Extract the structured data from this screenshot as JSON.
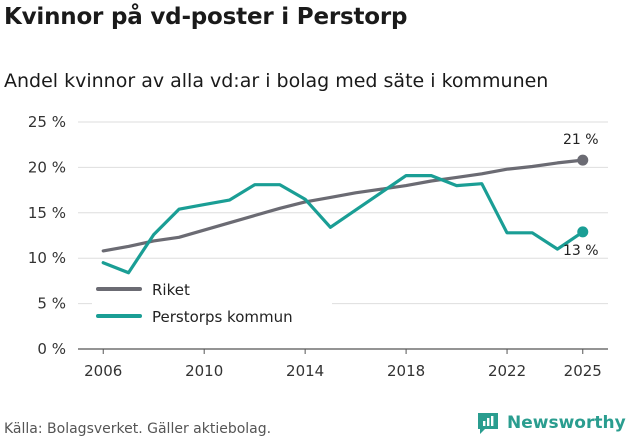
{
  "title": "Kvinnor på vd-poster i Perstorp",
  "subtitle": "Andel kvinnor av alla vd:ar i bolag med säte i kommunen",
  "source": "Källa: Bolagsverket. Gäller aktiebolag.",
  "brand": "Newsworthy",
  "colors": {
    "riket": "#6b6b73",
    "perstorp": "#1a9e95",
    "brand": "#2a9d8f"
  },
  "chart_data": {
    "type": "line",
    "title": "Kvinnor på vd-poster i Perstorp",
    "subtitle": "Andel kvinnor av alla vd:ar i bolag med säte i kommunen",
    "xlabel": "",
    "ylabel": "",
    "xlim": [
      2005,
      2026
    ],
    "ylim": [
      0,
      25
    ],
    "x_ticks": [
      2006,
      2010,
      2014,
      2018,
      2022,
      2025
    ],
    "y_ticks": [
      0,
      5,
      10,
      15,
      20,
      25
    ],
    "y_tick_labels": [
      "0 %",
      "5 %",
      "10 %",
      "15 %",
      "20 %",
      "25 %"
    ],
    "legend": [
      "Riket",
      "Perstorps kommun"
    ],
    "legend_position": "bottom-left",
    "series": [
      {
        "name": "Riket",
        "color": "#6b6b73",
        "x": [
          2006,
          2007,
          2008,
          2009,
          2010,
          2011,
          2012,
          2013,
          2014,
          2015,
          2016,
          2017,
          2018,
          2019,
          2020,
          2021,
          2022,
          2023,
          2024,
          2025
        ],
        "values": [
          10.8,
          11.3,
          11.9,
          12.3,
          13.1,
          13.9,
          14.7,
          15.5,
          16.2,
          16.7,
          17.2,
          17.6,
          18.0,
          18.5,
          18.9,
          19.3,
          19.8,
          20.1,
          20.5,
          20.8
        ],
        "end_label": "21 %"
      },
      {
        "name": "Perstorps kommun",
        "color": "#1a9e95",
        "x": [
          2006,
          2007,
          2008,
          2009,
          2010,
          2011,
          2012,
          2013,
          2014,
          2015,
          2016,
          2017,
          2018,
          2019,
          2020,
          2021,
          2022,
          2023,
          2024,
          2025
        ],
        "values": [
          9.5,
          8.4,
          12.6,
          15.4,
          15.9,
          16.4,
          18.1,
          18.1,
          16.5,
          13.4,
          15.3,
          17.2,
          19.1,
          19.1,
          18.0,
          18.2,
          12.8,
          12.8,
          11.0,
          12.9
        ],
        "end_label": "13 %"
      }
    ]
  }
}
